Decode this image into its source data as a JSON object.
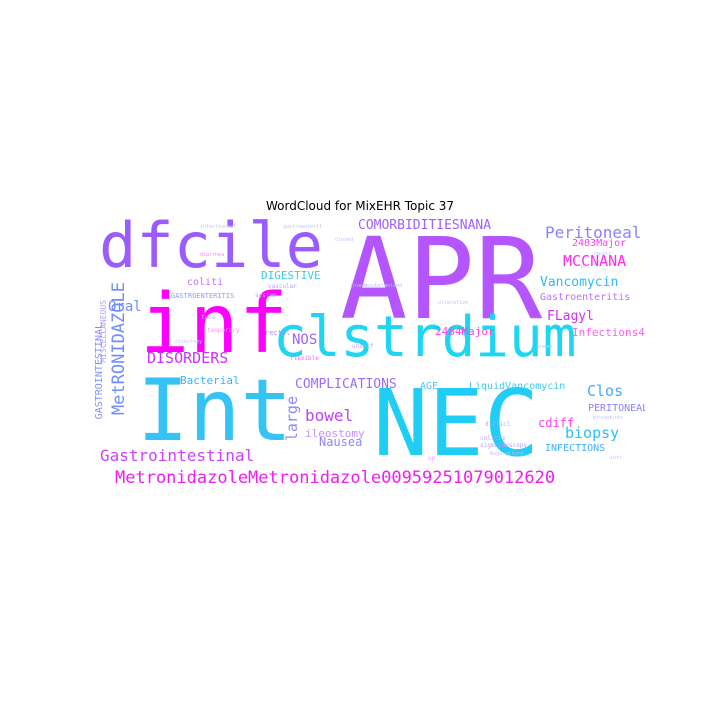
{
  "title": "WordCloud for MixEHR Topic 37",
  "colors": {
    "magenta": "#ff00ff",
    "cyan": "#20cdf5",
    "purple": "#b455ff",
    "violet": "#9b6cff",
    "periwinkle": "#6f8cff",
    "light_blue": "#7fd3f7",
    "pink": "#ff6ef0"
  },
  "words": [
    {
      "text": "APR",
      "color": "#b455ff"
    },
    {
      "text": "inf",
      "color": "#ff00ff"
    },
    {
      "text": "NEC",
      "color": "#20cdf5"
    },
    {
      "text": "Int",
      "color": "#35c2f5"
    },
    {
      "text": "clstrdium",
      "color": "#1ed6f2"
    },
    {
      "text": "dfcile",
      "color": "#9b5cff"
    },
    {
      "text": "MetronidazoleMetronidazole00959251079012620",
      "color": "#f21cf2"
    },
    {
      "text": "Gastrointestinal",
      "color": "#d040ff"
    },
    {
      "text": "DISORDERS",
      "color": "#d030ff"
    },
    {
      "text": "MetRONIDAZOLE",
      "color": "#6f8cff"
    },
    {
      "text": "GASTROINTESTINAL",
      "color": "#7f90ff"
    },
    {
      "text": "MISCELLANEOUS",
      "color": "#b0a0ff"
    },
    {
      "text": "COMORBIDITIESNANA",
      "color": "#a060ff"
    },
    {
      "text": "Peritoneal",
      "color": "#8c80ff"
    },
    {
      "text": "MCCNANA",
      "color": "#ff2cf0"
    },
    {
      "text": "Vancomycin",
      "color": "#35b8f5"
    },
    {
      "text": "Gastroenteritis",
      "color": "#c070ff"
    },
    {
      "text": "FLagyl",
      "color": "#d030ff"
    },
    {
      "text": "Infections44",
      "color": "#ff60f0"
    },
    {
      "text": "2483Major",
      "color": "#ff40f0"
    },
    {
      "text": "2484Major",
      "color": "#ff40f0"
    },
    {
      "text": "biopsy",
      "color": "#28c2f5"
    },
    {
      "text": "Clos",
      "color": "#4aa8ff"
    },
    {
      "text": "cdiff",
      "color": "#ff40ff"
    },
    {
      "text": "PERITONEAL",
      "color": "#8c80ff"
    },
    {
      "text": "INFECTIONS",
      "color": "#40b0ff"
    },
    {
      "text": "LiquidVancomycin",
      "color": "#40c8f0"
    },
    {
      "text": "COMPLICATIONS",
      "color": "#9b6cff"
    },
    {
      "text": "AGE",
      "color": "#55c0ff"
    },
    {
      "text": "Nausea",
      "color": "#8c88ff"
    },
    {
      "text": "bowel",
      "color": "#c040ff"
    },
    {
      "text": "large",
      "color": "#8a8aff"
    },
    {
      "text": "ileostomy",
      "color": "#c890ff"
    },
    {
      "text": "NOS",
      "color": "#a060ff"
    },
    {
      "text": "Bacterial",
      "color": "#40b0ff"
    },
    {
      "text": "Oral",
      "color": "#6f8cff"
    },
    {
      "text": "coliti",
      "color": "#c870ff"
    },
    {
      "text": "DIGESTIVE",
      "color": "#40c8f0"
    },
    {
      "text": "GASTROENTERITIS",
      "color": "#8c9cff"
    },
    {
      "text": "rectal",
      "color": "#b090ff"
    },
    {
      "text": "flexible",
      "color": "#ff60ff"
    },
    {
      "text": "colitis",
      "color": "#c0a0ff"
    },
    {
      "text": "sigmoidoscopy",
      "color": "#c0a0ff"
    },
    {
      "text": "difficl",
      "color": "#a0b0ff"
    },
    {
      "text": "infectionsul",
      "color": "#c0c0ff"
    },
    {
      "text": "gastroenterit",
      "color": "#c0c0ff"
    },
    {
      "text": "diarrhea",
      "color": "#ff80ff"
    },
    {
      "text": "vascular",
      "color": "#c0a0ff"
    },
    {
      "text": "insert",
      "color": "#c0c0ff"
    },
    {
      "text": "system",
      "color": "#a0b0ff"
    },
    {
      "text": "tube",
      "color": "#c0c0ff"
    },
    {
      "text": "temporary",
      "color": "#ff90ff"
    },
    {
      "text": "colectomy",
      "color": "#c0c0ff"
    },
    {
      "text": "repair",
      "color": "#c0c0ff"
    },
    {
      "text": "procedures",
      "color": "#c0c0ff"
    },
    {
      "text": "up",
      "color": "#ff90ff"
    },
    {
      "text": "unspcf",
      "color": "#c0a0ff"
    },
    {
      "text": "ulcerative",
      "color": "#c0c0ff"
    },
    {
      "text": "closed",
      "color": "#c0c0ff"
    },
    {
      "text": "intr",
      "color": "#c0c0ff"
    },
    {
      "text": "tot",
      "color": "#c0c0ff"
    },
    {
      "text": "unsubstantied",
      "color": "#c0c0ff"
    },
    {
      "text": "Regurgitory",
      "color": "#c0c0ff"
    },
    {
      "text": "enema",
      "color": "#c0c0ff"
    }
  ]
}
